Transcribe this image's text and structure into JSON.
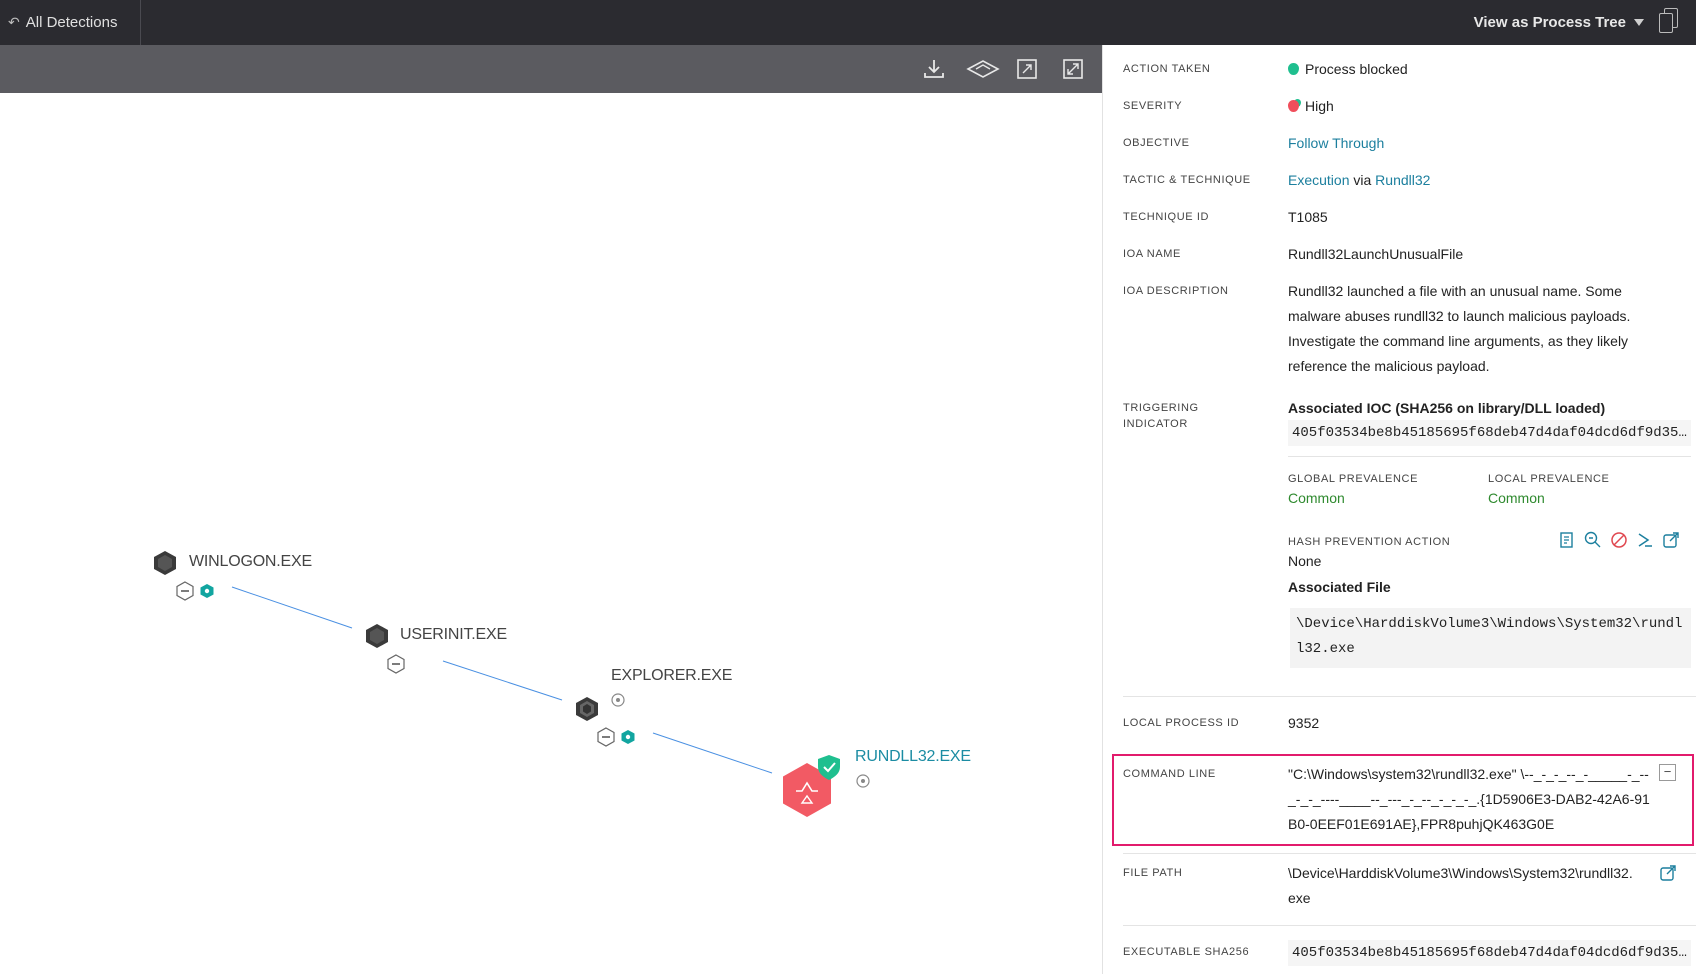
{
  "topbar": {
    "back_label": "All Detections",
    "view_label": "View as Process Tree"
  },
  "graph": {
    "nodes": [
      {
        "name": "WINLOGON.EXE"
      },
      {
        "name": "USERINIT.EXE"
      },
      {
        "name": "EXPLORER.EXE"
      },
      {
        "name": "RUNDLL32.EXE"
      }
    ]
  },
  "details": {
    "action_taken": {
      "label": "ACTION TAKEN",
      "value": "Process blocked"
    },
    "severity": {
      "label": "SEVERITY",
      "value": "High"
    },
    "objective": {
      "label": "OBJECTIVE",
      "value": "Follow Through"
    },
    "tactic": {
      "label": "TACTIC & TECHNIQUE",
      "tactic": "Execution",
      "via": "via",
      "technique": "Rundll32"
    },
    "technique_id": {
      "label": "TECHNIQUE ID",
      "value": "T1085"
    },
    "ioa_name": {
      "label": "IOA NAME",
      "value": "Rundll32LaunchUnusualFile"
    },
    "ioa_description": {
      "label": "IOA DESCRIPTION",
      "lines": [
        "Rundll32 launched a file with an unusual name. Some",
        "malware abuses rundll32 to launch malicious payloads.",
        "Investigate the command line arguments, as they likely",
        "reference the malicious payload."
      ]
    },
    "triggering_indicator": {
      "label_line1": "TRIGGERING",
      "label_line2": "INDICATOR",
      "ioc_title": "Associated IOC (SHA256 on library/DLL loaded)",
      "ioc_hash": "405f03534be8b45185695f68deb47d4daf04dcd6df9d35…",
      "global_prevalence_label": "GLOBAL PREVALENCE",
      "global_prevalence": "Common",
      "local_prevalence_label": "LOCAL PREVALENCE",
      "local_prevalence": "Common",
      "hash_prevention_label": "HASH PREVENTION ACTION",
      "hash_prevention": "None",
      "associated_file_title": "Associated File",
      "associated_file_lines": [
        "\\Device\\HarddiskVolume3\\Windows\\System32\\rundl",
        "l32.exe"
      ]
    },
    "local_process_id": {
      "label": "LOCAL PROCESS ID",
      "value": "9352"
    },
    "command_line": {
      "label": "COMMAND LINE",
      "lines": [
        "\"C:\\Windows\\system32\\rundll32.exe\"  \\--_-_-_--_-_____-_--",
        "_-_-_----____--_---_-_--_-_-_-_.{1D5906E3-DAB2-42A6-91",
        "B0-0EEF01E691AE},FPR8puhjQK463G0E"
      ],
      "collapse_symbol": "−"
    },
    "file_path": {
      "label": "FILE PATH",
      "lines": [
        "\\Device\\HarddiskVolume3\\Windows\\System32\\rundll32.",
        "exe"
      ]
    },
    "executable_sha256": {
      "label": "EXECUTABLE SHA256",
      "value": "405f03534be8b45185695f68deb47d4daf04dcd6df9d35…"
    }
  },
  "colors": {
    "accent": "#1c7f9e",
    "shield_green": "#1fbf8f",
    "severity_red": "#f04e5b",
    "node_red": "#f25a64",
    "highlight": "#e21b6c",
    "prevalence_green": "#2f8a2f"
  },
  "icons": {
    "toolbar": [
      "download-icon",
      "layers-icon",
      "expand-icon",
      "fit-icon"
    ],
    "hash_actions": [
      "note-icon",
      "search-icon",
      "block-icon",
      "terminal-icon",
      "external-link-icon"
    ]
  }
}
